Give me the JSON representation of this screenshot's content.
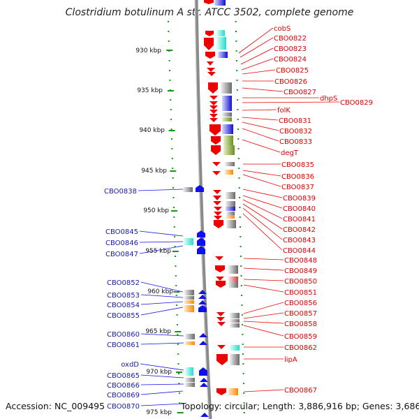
{
  "title": "Clostridium botulinum A str. ATCC 3502, complete genome",
  "footer": {
    "accession": "Accession: NC_009495",
    "topology": "Topology: circular; Length: 3,886,916 bp; Genes: 3,686"
  },
  "ticks": [
    "930 kbp",
    "935 kbp",
    "940 kbp",
    "945 kbp",
    "950 kbp",
    "955 kbp",
    "960 kbp",
    "965 kbp",
    "970 kbp",
    "975 kbp"
  ],
  "right_labels": [
    "cobS",
    "CBO0822",
    "CBO0823",
    "CBO0824",
    "CBO0825",
    "CBO0826",
    "CBO0827",
    "dhpS",
    "CBO0829",
    "folK",
    "CBO0831",
    "CBO0832",
    "CBO0833",
    "degT",
    "CBO0835",
    "CBO0836",
    "CBO0837",
    "CBO0839",
    "CBO0840",
    "CBO0841",
    "CBO0842",
    "CBO0843",
    "CBO0844",
    "CBO0848",
    "CBO0849",
    "CBO0850",
    "CBO0851",
    "CBO0856",
    "CBO0857",
    "CBO0858",
    "CBO0859",
    "CBO0862",
    "lipA",
    "CBO0867"
  ],
  "left_labels": [
    "CBO0838",
    "CBO0845",
    "CBO0846",
    "CBO0847",
    "CBO0852",
    "CBO0853",
    "CBO0854",
    "CBO0855",
    "CBO0860",
    "CBO0861",
    "oxdD",
    "CBO0865",
    "CBO0866",
    "CBO0869",
    "CBO0870"
  ],
  "colors": {
    "forward_strand": "#ee0000",
    "reverse_strand": "#1010ee",
    "backbone": "#8a8a8a",
    "tick_dot": "#119911",
    "cog_cyan": "#22ddcc",
    "cog_blue": "#1111cc",
    "cog_olive": "#6b8e23",
    "cog_orange": "#ff8800",
    "cog_grey": "#999999"
  }
}
